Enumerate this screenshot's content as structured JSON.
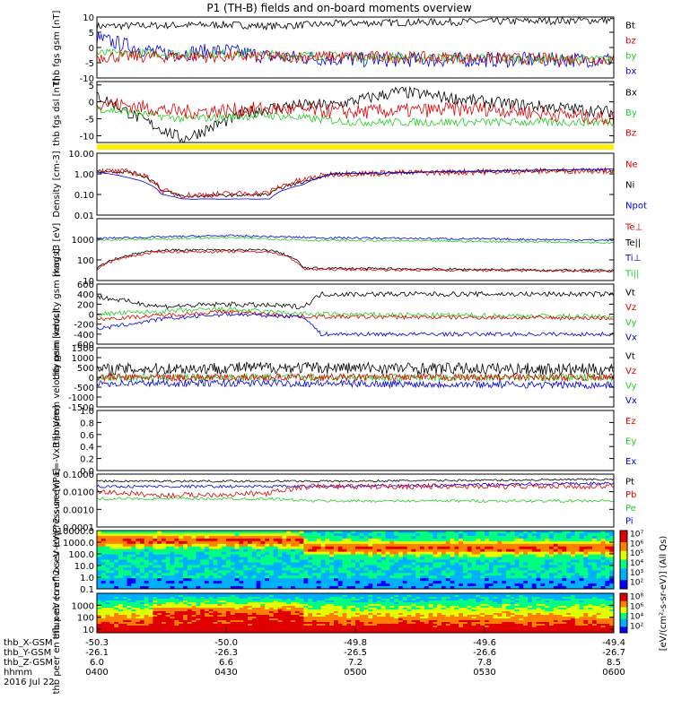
{
  "title": "P1 (TH-B) fields and on-board moments overview",
  "chart_data": [
    {
      "type": "line",
      "ylabel": "thb fgs gsm [nT]",
      "ylim": [
        -10,
        10
      ],
      "yticks": [
        "10",
        "5",
        "0",
        "-5",
        "-10"
      ],
      "ytick_values": [
        10,
        5,
        0,
        -5,
        -10
      ],
      "legend": [
        {
          "name": "Bt",
          "color": "#000000"
        },
        {
          "name": "bz",
          "color": "#dd0000"
        },
        {
          "name": "by",
          "color": "#22cc22"
        },
        {
          "name": "bx",
          "color": "#0000dd"
        }
      ]
    },
    {
      "type": "line",
      "ylabel": "thb fgs dsl [nT]",
      "ylim": [
        -12,
        6
      ],
      "yticks": [
        "5",
        "0",
        "-5",
        "-10"
      ],
      "ytick_values": [
        5,
        0,
        -5,
        -10
      ],
      "legend": [
        {
          "name": "Bx",
          "color": "#000000"
        },
        {
          "name": "By",
          "color": "#22cc22"
        },
        {
          "name": "Bz",
          "color": "#dd0000"
        }
      ]
    },
    {
      "type": "line",
      "ylabel": "Density [cm-3]",
      "ylim": [
        0.01,
        10
      ],
      "log": true,
      "yticks": [
        "10.00",
        "1.00",
        "0.10",
        "0.01"
      ],
      "ytick_values": [
        10,
        1,
        0.1,
        0.01
      ],
      "legend": [
        {
          "name": "Ne",
          "color": "#dd0000"
        },
        {
          "name": "Ni",
          "color": "#000000"
        },
        {
          "name": "Npot",
          "color": "#0000dd"
        }
      ]
    },
    {
      "type": "line",
      "ylabel": "mag t3 [eV]",
      "ylim": [
        10,
        10000
      ],
      "log": true,
      "yticks": [
        "1000",
        "100",
        "10"
      ],
      "ytick_values": [
        1000,
        100,
        10
      ],
      "legend": [
        {
          "name": "Te⊥",
          "color": "#dd0000"
        },
        {
          "name": "Te||",
          "color": "#000000"
        },
        {
          "name": "Ti⊥",
          "color": "#0000dd"
        },
        {
          "name": "Ti||",
          "color": "#22cc22"
        }
      ]
    },
    {
      "type": "line",
      "ylabel": "thb peim velocity gsm [km/s]",
      "ylim": [
        -600,
        600
      ],
      "yticks": [
        "600",
        "400",
        "200",
        "0",
        "-200",
        "-400",
        "-600"
      ],
      "ytick_values": [
        600,
        400,
        200,
        0,
        -200,
        -400,
        -600
      ],
      "legend": [
        {
          "name": "Vt",
          "color": "#000000"
        },
        {
          "name": "Vz",
          "color": "#dd0000"
        },
        {
          "name": "Vy",
          "color": "#22cc22"
        },
        {
          "name": "Vx",
          "color": "#0000dd"
        }
      ]
    },
    {
      "type": "line",
      "ylabel": "thb peem velocity gsm [km/s]",
      "ylim": [
        -1500,
        1500
      ],
      "yticks": [
        "1500",
        "1000",
        "500",
        "0",
        "-500",
        "-1000",
        "-1500"
      ],
      "ytick_values": [
        1500,
        1000,
        500,
        0,
        -500,
        -1000,
        -1500
      ],
      "legend": [
        {
          "name": "Vt",
          "color": "#000000"
        },
        {
          "name": "Vz",
          "color": "#dd0000"
        },
        {
          "name": "Vy",
          "color": "#22cc22"
        },
        {
          "name": "Vx",
          "color": "#0000dd"
        }
      ]
    },
    {
      "type": "line",
      "ylabel": "E=-VxB [mV/m]",
      "ylim": [
        0,
        1
      ],
      "yticks": [
        "1.0",
        "0.8",
        "0.6",
        "0.4",
        "0.2",
        "0.0"
      ],
      "ytick_values": [
        1.0,
        0.8,
        0.6,
        0.4,
        0.2,
        0.0
      ],
      "legend": [
        {
          "name": "Ez",
          "color": "#dd0000"
        },
        {
          "name": "Ey",
          "color": "#22cc22"
        },
        {
          "name": "Ex",
          "color": "#0000dd"
        }
      ]
    },
    {
      "type": "line",
      "ylabel": "Pressure [nPa]",
      "ylim": [
        0.0001,
        0.1
      ],
      "log": true,
      "yticks": [
        "0.1000",
        "0.0100",
        "0.0010",
        "0.0001"
      ],
      "ytick_values": [
        0.1,
        0.01,
        0.001,
        0.0001
      ],
      "legend": [
        {
          "name": "Pt",
          "color": "#000000"
        },
        {
          "name": "Pb",
          "color": "#dd0000"
        },
        {
          "name": "Pe",
          "color": "#22cc22"
        },
        {
          "name": "Pi",
          "color": "#0000dd"
        }
      ]
    },
    {
      "type": "heatmap",
      "ylabel": "thb peir en eflux eV (cm^2-s-sr-eV)",
      "ylim": [
        0.1,
        10000
      ],
      "log": true,
      "yticks": [
        "10000.0",
        "1000.0",
        "100.0",
        "10.0",
        "1.0",
        "0.1"
      ],
      "ytick_values": [
        10000,
        1000,
        100,
        10,
        1,
        0.1
      ],
      "colorbar_ticks": [
        "10⁷",
        "10⁶",
        "10⁵",
        "10⁴",
        "10³",
        "10²"
      ]
    },
    {
      "type": "heatmap",
      "ylabel": "thb peer en eflux eV (cm^2-s-sr-eV)",
      "ylim": [
        5,
        10000
      ],
      "log": true,
      "yticks": [
        "1000",
        "100",
        "10"
      ],
      "ytick_values": [
        1000,
        100,
        10
      ],
      "colorbar_ticks": [
        "10⁸",
        "10⁶",
        "10⁴",
        "10²"
      ]
    }
  ],
  "colorbar_label": "[eV/(cm²-s-sr-eV)] (All Qs)",
  "xaxis": {
    "row_labels": [
      "thb_X-GSM",
      "thb_Y-GSM",
      "thb_Z-GSM",
      "hhmm",
      "2016 Jul 22"
    ],
    "rows": [
      [
        "-50.3",
        "-50.0",
        "-49.8",
        "-49.6",
        "-49.4"
      ],
      [
        "-26.1",
        "-26.3",
        "-26.5",
        "-26.6",
        "-26.7"
      ],
      [
        "6.0",
        "6.6",
        "7.2",
        "7.8",
        "8.5"
      ],
      [
        "0400",
        "0430",
        "0500",
        "0530",
        "0600"
      ]
    ],
    "minutes": [
      0,
      30,
      60,
      90,
      120
    ]
  }
}
